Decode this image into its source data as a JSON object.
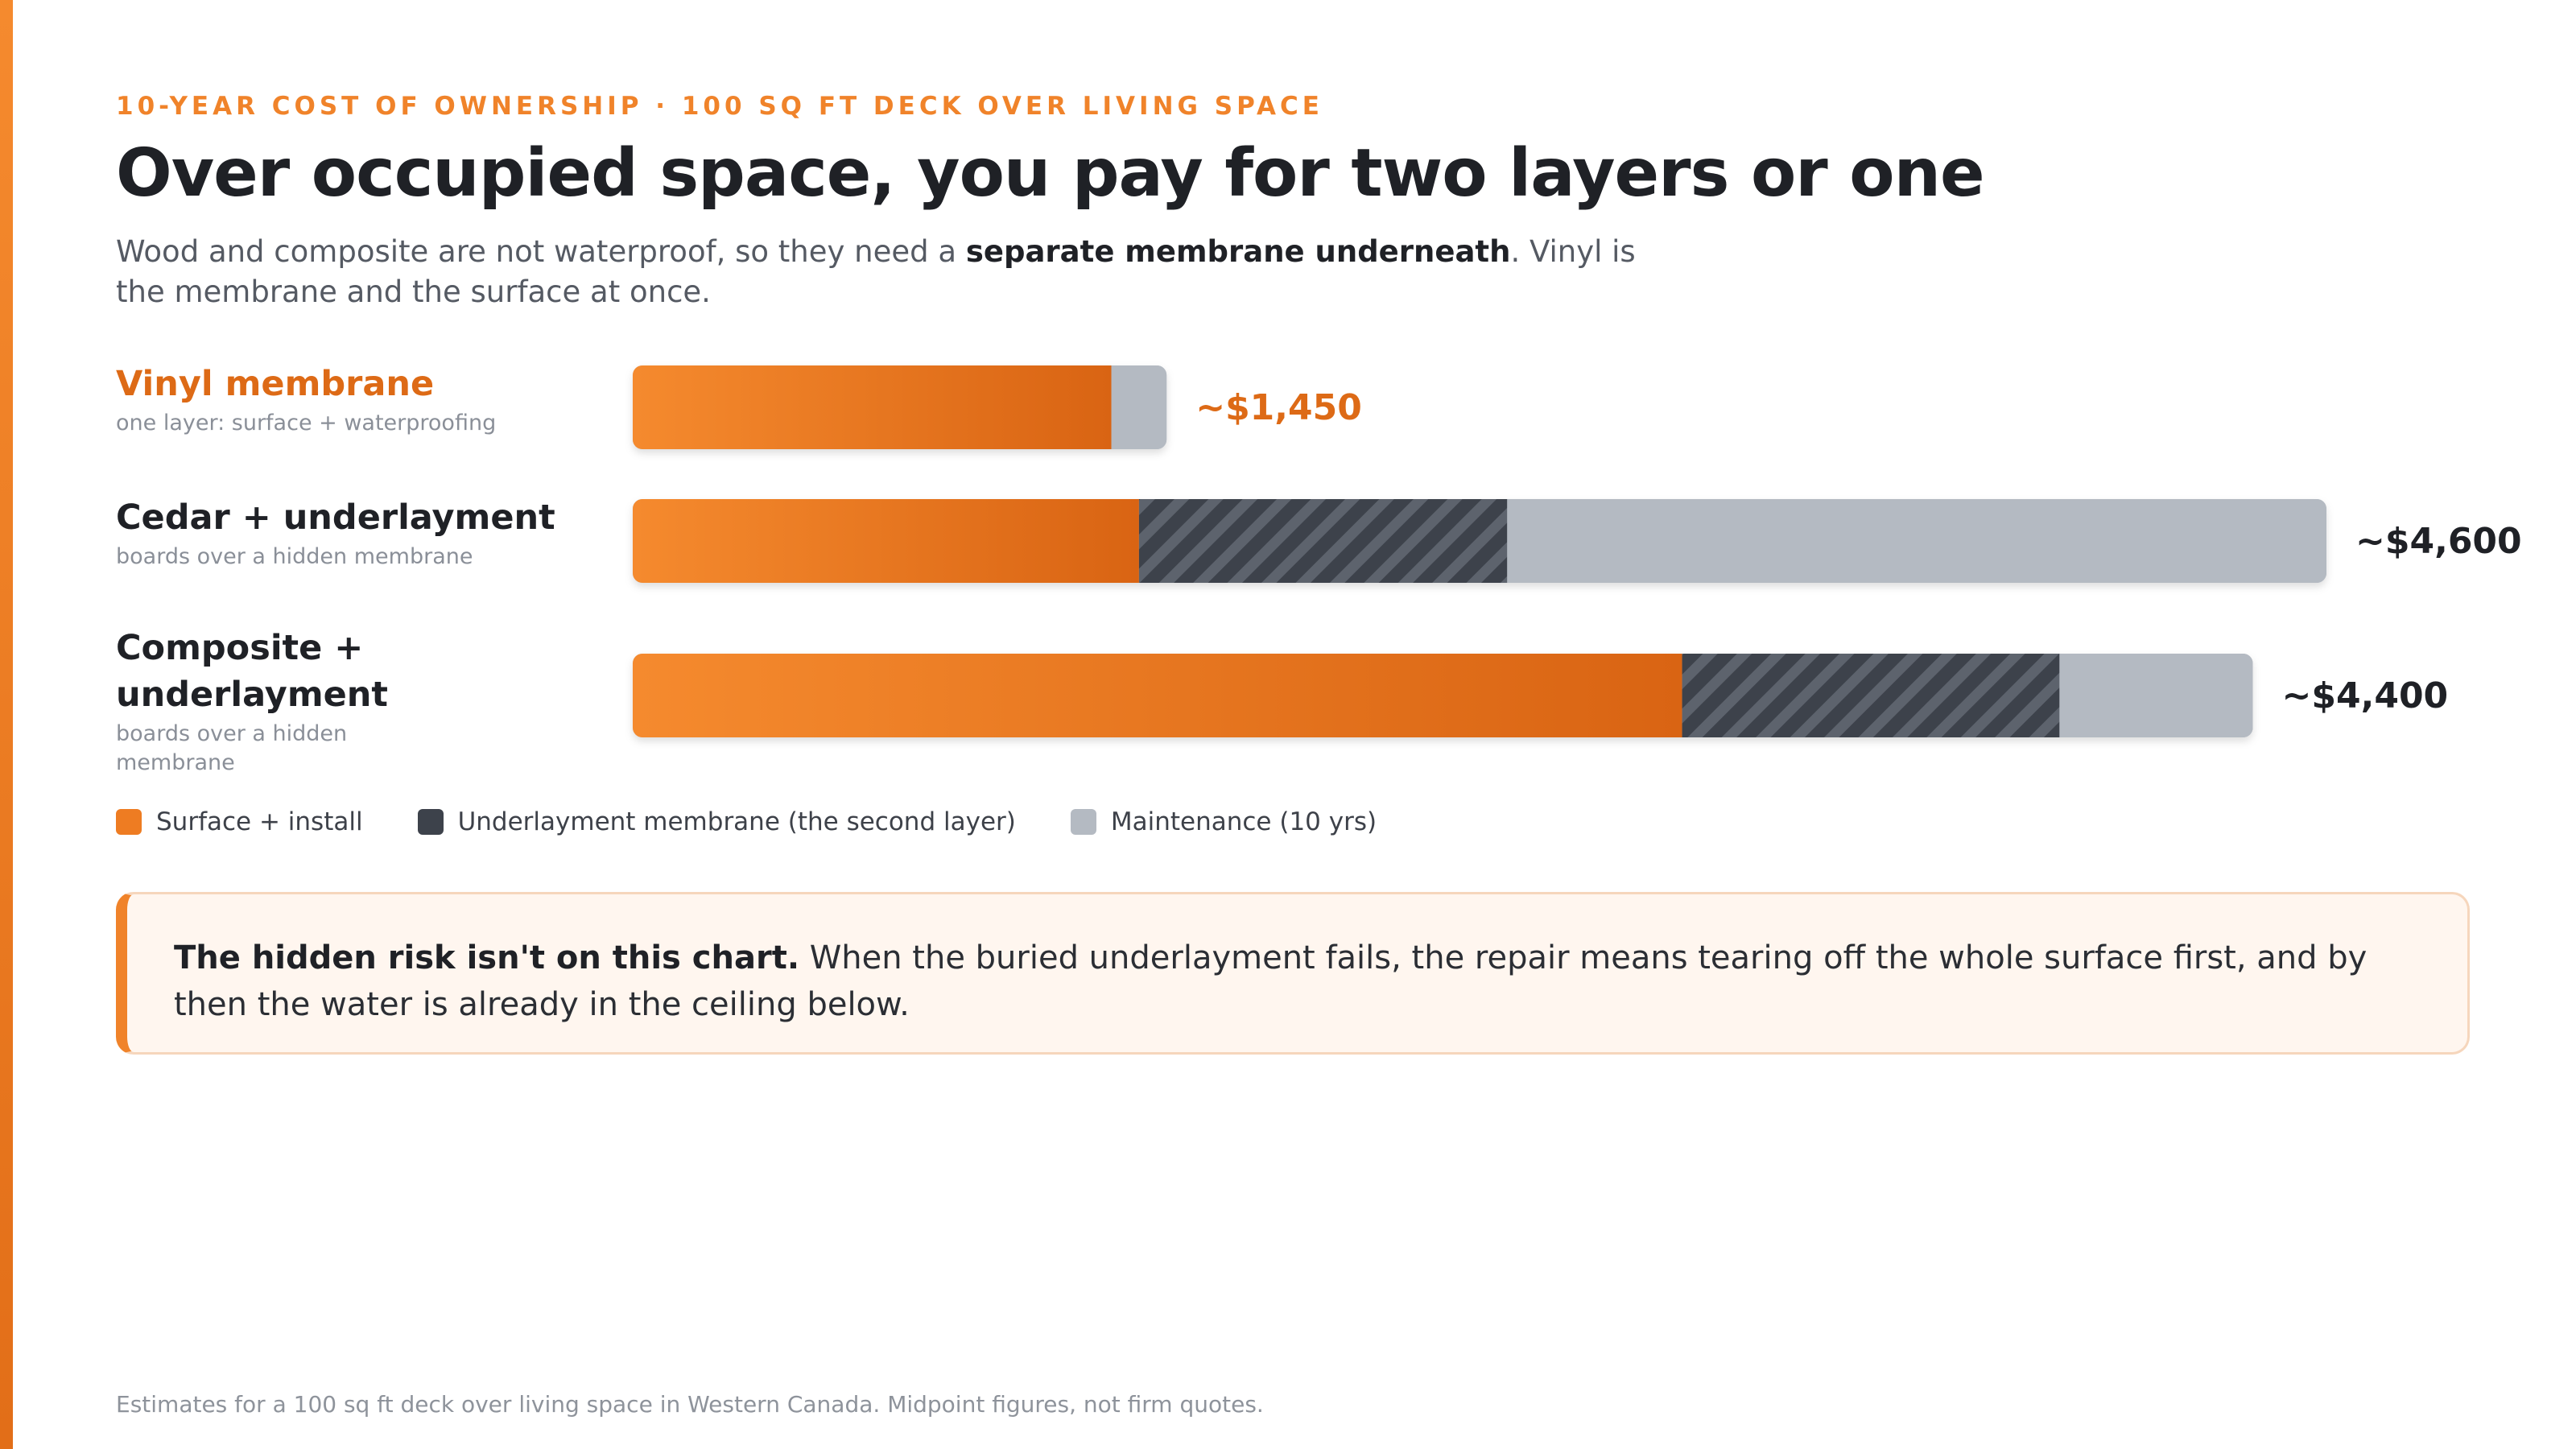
{
  "eyebrow": "10-YEAR COST OF OWNERSHIP · 100 SQ FT DECK OVER LIVING SPACE",
  "headline": "Over occupied space, you pay for two layers or one",
  "subline": {
    "pre": "Wood and composite are not waterproof, so they need a ",
    "bold": "separate membrane underneath",
    "post": ". Vinyl is the membrane and the surface at once."
  },
  "colors": {
    "accent": "#f0832a",
    "surface": "#ee7c22",
    "underlayment": "#3d424b",
    "maintenance": "#b4bac2",
    "highlight_text": "#dd6a16"
  },
  "chart_data": {
    "type": "bar",
    "orientation": "horizontal",
    "stacked": true,
    "categories": [
      "Vinyl membrane",
      "Cedar + underlayment",
      "Composite + underlayment"
    ],
    "category_notes": [
      "one layer: surface + waterproofing",
      "boards over a hidden membrane",
      "boards over a hidden membrane"
    ],
    "series": [
      {
        "name": "Surface + install",
        "values": [
          1300,
          1375,
          2850
        ]
      },
      {
        "name": "Underlayment membrane (the second layer)",
        "values": [
          0,
          1000,
          1025
        ]
      },
      {
        "name": "Maintenance (10 yrs)",
        "values": [
          150,
          2225,
          525
        ]
      }
    ],
    "totals": [
      1450,
      4600,
      4400
    ],
    "total_labels": [
      "~$1,450",
      "~$4,600",
      "~$4,400"
    ],
    "xlim": [
      0,
      4600
    ],
    "grid": false,
    "legend_position": "bottom-left"
  },
  "legend": [
    {
      "label": "Surface + install",
      "swatch": "surface"
    },
    {
      "label": "Underlayment membrane (the second layer)",
      "swatch": "underlayment"
    },
    {
      "label": "Maintenance (10 yrs)",
      "swatch": "maintenance"
    }
  ],
  "callout": {
    "bold": "The hidden risk isn't on this chart.",
    "text": " When the buried underlayment fails, the repair means tearing off the whole surface first, and by then the water is already in the ceiling below."
  },
  "footnote": "Estimates for a 100 sq ft deck over living space in Western Canada. Midpoint figures, not firm quotes."
}
